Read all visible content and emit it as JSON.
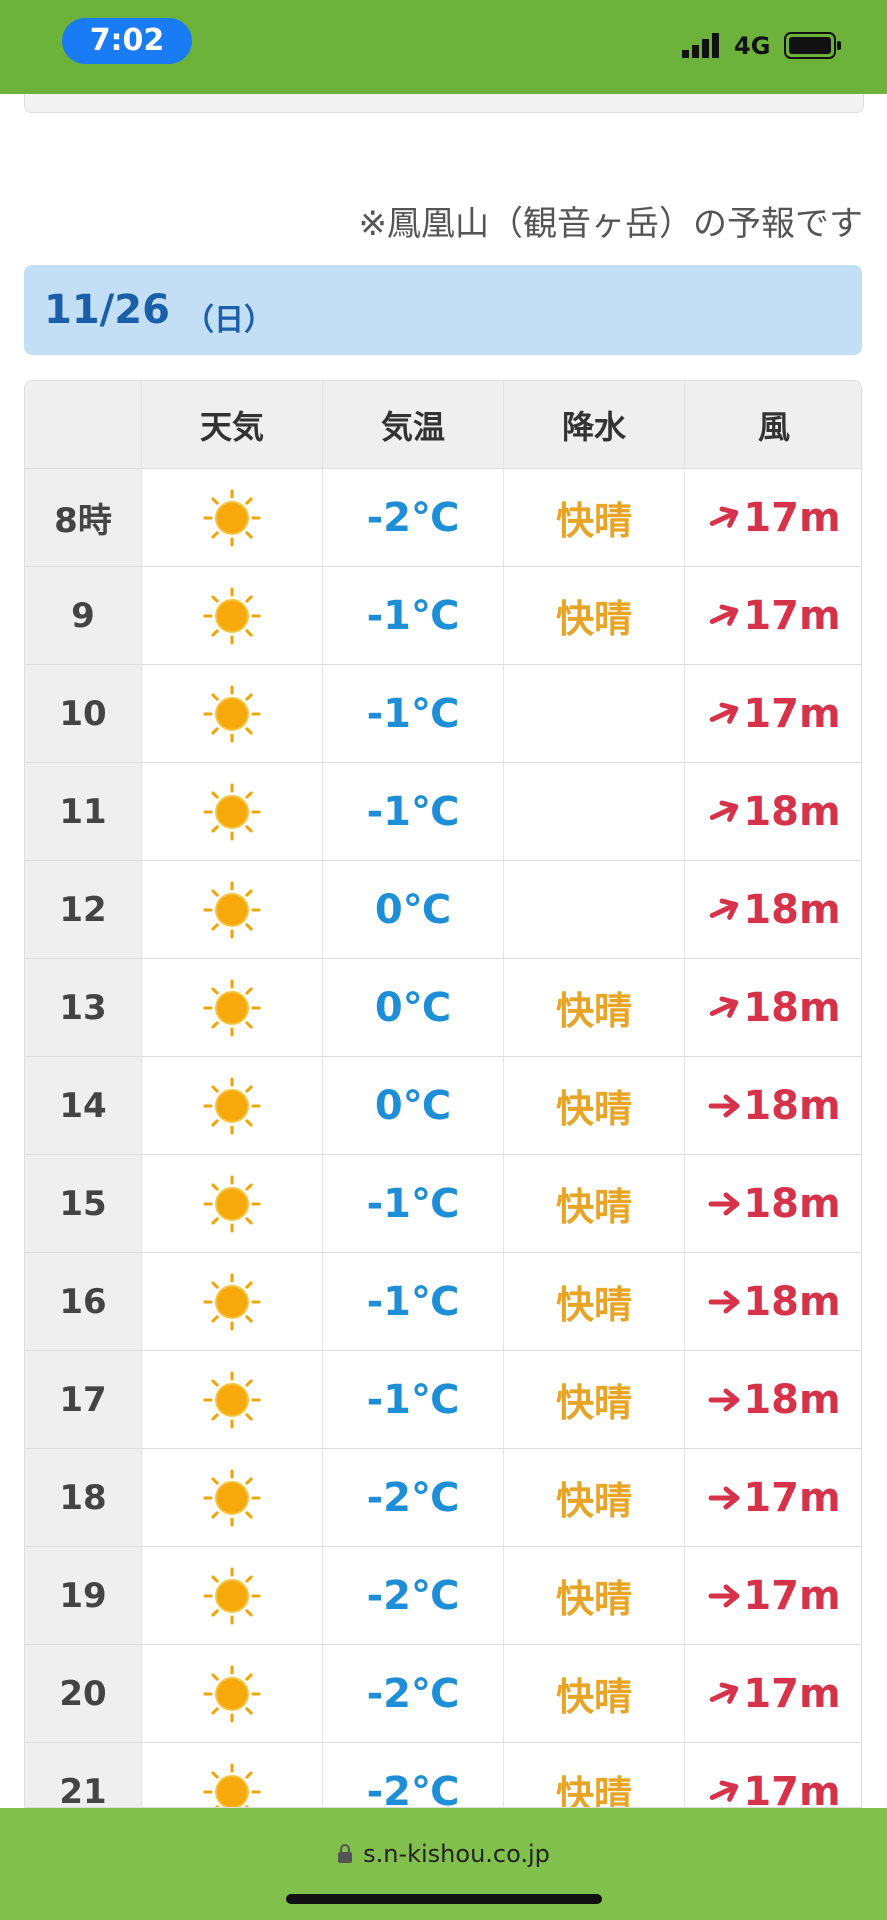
{
  "status_bar": {
    "time": "7:02",
    "network": "4G"
  },
  "note": "※鳳凰山（観音ヶ岳）の予報です",
  "date": {
    "day": "11/26",
    "weekday": "（日）"
  },
  "table": {
    "headers": [
      "天気",
      "気温",
      "降水",
      "風"
    ],
    "rows": [
      [
        "8時",
        "-2℃",
        "快晴",
        "17m"
      ],
      [
        "9",
        "-1℃",
        "快晴",
        "17m"
      ],
      [
        "10",
        "-1℃",
        null,
        "17m"
      ],
      [
        "11",
        "-1℃",
        null,
        "18m"
      ],
      [
        "12",
        "0℃",
        null,
        "18m"
      ],
      [
        "13",
        "0℃",
        "快晴",
        "18m"
      ],
      [
        "14",
        "0℃",
        "快晴",
        "18m"
      ],
      [
        "15",
        "-1℃",
        "快晴",
        "18m"
      ],
      [
        "16",
        "-1℃",
        "快晴",
        "18m"
      ],
      [
        "17",
        "-1℃",
        "快晴",
        "18m"
      ],
      [
        "18",
        "-2℃",
        "快晴",
        "17m"
      ],
      [
        "19",
        "-2℃",
        "快晴",
        "17m"
      ],
      [
        "20",
        "-2℃",
        "快晴",
        "17m"
      ],
      [
        "21",
        "-2℃",
        "快晴",
        "17m"
      ]
    ]
  },
  "footer": {
    "url": "s.n-kishou.co.jp"
  }
}
